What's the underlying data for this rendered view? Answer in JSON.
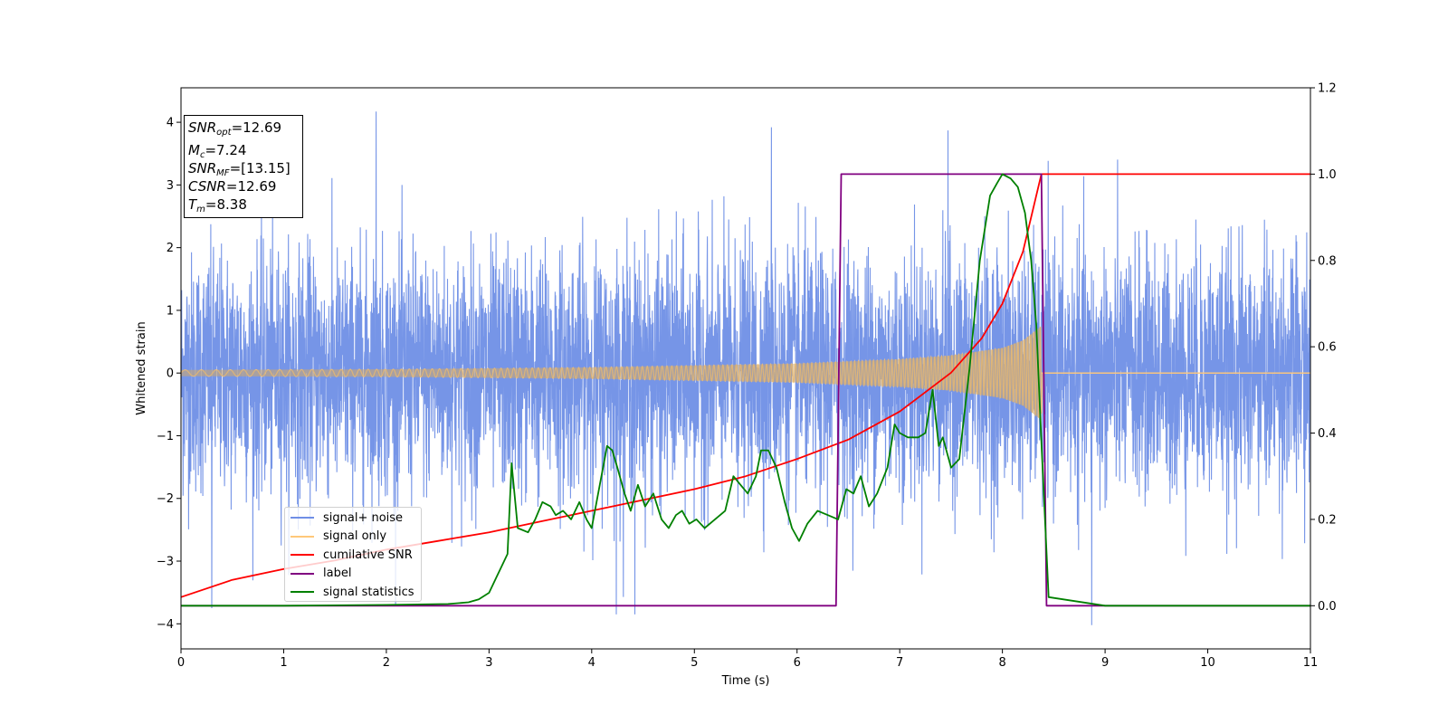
{
  "chart_data": {
    "type": "line",
    "xlabel": "Time (s)",
    "ylabel": "Whitened strain",
    "xlim": [
      0,
      11
    ],
    "ylim": [
      -4.4,
      4.55
    ],
    "y2lim": [
      -0.1,
      1.2
    ],
    "x_ticks": [
      0,
      1,
      2,
      3,
      4,
      5,
      6,
      7,
      8,
      9,
      10,
      11
    ],
    "y_ticks": [
      -4,
      -3,
      -2,
      -1,
      0,
      1,
      2,
      3,
      4
    ],
    "y2_ticks": [
      "0.0",
      "0.2",
      "0.4",
      "0.6",
      "0.8",
      "1.0",
      "1.2"
    ],
    "grid": false,
    "legend_position": "lower-left",
    "annotation": {
      "lines": [
        {
          "base": "SNR",
          "sub": "opt",
          "value": "=12.69"
        },
        {
          "base": "M",
          "sub": "c",
          "value": "=7.24"
        },
        {
          "base": "SNR",
          "sub": "MF",
          "value": "=[13.15]"
        },
        {
          "base": "CSNR",
          "sub": "",
          "value": "=12.69"
        },
        {
          "base": "T",
          "sub": "m",
          "value": "=8.38"
        }
      ]
    },
    "series": [
      {
        "name": "signal+ noise",
        "axis": "left",
        "color": "#6f8fe6",
        "description": "whitened noise, roughly N(0,1) with peaks up to ±4",
        "notable_peaks": [
          [
            1.9,
            4.17
          ],
          [
            0.3,
            -3.75
          ],
          [
            4.24,
            -3.85
          ],
          [
            4.42,
            -3.85
          ],
          [
            5.75,
            3.92
          ],
          [
            7.47,
            3.87
          ],
          [
            8.87,
            -4.02
          ]
        ]
      },
      {
        "name": "signal only",
        "axis": "left",
        "color": "#ffc87a",
        "description": "chirp with growing amplitude ending at merger",
        "amplitude_envelope": [
          [
            0,
            0.05
          ],
          [
            2,
            0.06
          ],
          [
            4,
            0.09
          ],
          [
            6,
            0.15
          ],
          [
            7,
            0.22
          ],
          [
            7.5,
            0.28
          ],
          [
            8,
            0.4
          ],
          [
            8.2,
            0.52
          ],
          [
            8.38,
            0.75
          ],
          [
            8.4,
            0
          ]
        ],
        "merger_time": 8.38
      },
      {
        "name": "cumilative SNR",
        "axis": "right",
        "color": "#ff0000",
        "x": [
          0,
          0.5,
          1,
          1.5,
          2,
          2.5,
          3,
          3.5,
          4,
          4.5,
          5,
          5.5,
          6,
          6.5,
          7,
          7.5,
          7.8,
          8,
          8.2,
          8.38,
          8.4,
          11
        ],
        "y": [
          0.02,
          0.06,
          0.085,
          0.105,
          0.13,
          0.15,
          0.17,
          0.195,
          0.22,
          0.245,
          0.27,
          0.3,
          0.34,
          0.385,
          0.45,
          0.54,
          0.62,
          0.7,
          0.82,
          1.0,
          1.0,
          1.0
        ]
      },
      {
        "name": "label",
        "axis": "right",
        "color": "#800080",
        "x": [
          0,
          6.38,
          6.43,
          8.38,
          8.43,
          11
        ],
        "y": [
          0,
          0,
          1,
          1,
          0,
          0
        ]
      },
      {
        "name": "signal statistics",
        "axis": "right",
        "color": "#008000",
        "x": [
          0,
          1,
          2,
          2.6,
          2.8,
          2.9,
          3.0,
          3.1,
          3.18,
          3.22,
          3.28,
          3.38,
          3.45,
          3.52,
          3.6,
          3.65,
          3.72,
          3.8,
          3.88,
          3.95,
          4.0,
          4.15,
          4.2,
          4.25,
          4.32,
          4.38,
          4.45,
          4.52,
          4.6,
          4.68,
          4.75,
          4.82,
          4.88,
          4.95,
          5.02,
          5.1,
          5.2,
          5.3,
          5.38,
          5.45,
          5.52,
          5.6,
          5.65,
          5.72,
          5.8,
          5.88,
          5.95,
          6.02,
          6.1,
          6.2,
          6.3,
          6.4,
          6.48,
          6.55,
          6.62,
          6.7,
          6.78,
          6.88,
          6.95,
          7.0,
          7.08,
          7.18,
          7.25,
          7.32,
          7.38,
          7.42,
          7.5,
          7.58,
          7.68,
          7.78,
          7.88,
          7.95,
          8.0,
          8.08,
          8.15,
          8.22,
          8.28,
          8.33,
          8.38,
          8.45,
          9,
          10,
          11
        ],
        "y": [
          0.0,
          0.0,
          0.002,
          0.004,
          0.008,
          0.015,
          0.03,
          0.08,
          0.12,
          0.33,
          0.18,
          0.17,
          0.2,
          0.24,
          0.23,
          0.21,
          0.22,
          0.2,
          0.24,
          0.2,
          0.18,
          0.37,
          0.36,
          0.32,
          0.26,
          0.22,
          0.28,
          0.23,
          0.26,
          0.2,
          0.18,
          0.21,
          0.22,
          0.19,
          0.2,
          0.18,
          0.2,
          0.22,
          0.3,
          0.28,
          0.26,
          0.3,
          0.36,
          0.36,
          0.32,
          0.24,
          0.18,
          0.15,
          0.19,
          0.22,
          0.21,
          0.2,
          0.27,
          0.26,
          0.3,
          0.23,
          0.26,
          0.32,
          0.42,
          0.4,
          0.39,
          0.39,
          0.4,
          0.5,
          0.37,
          0.39,
          0.32,
          0.34,
          0.55,
          0.8,
          0.95,
          0.98,
          1.0,
          0.99,
          0.97,
          0.91,
          0.8,
          0.65,
          0.38,
          0.02,
          0.0,
          0.0,
          0.0
        ]
      }
    ]
  }
}
